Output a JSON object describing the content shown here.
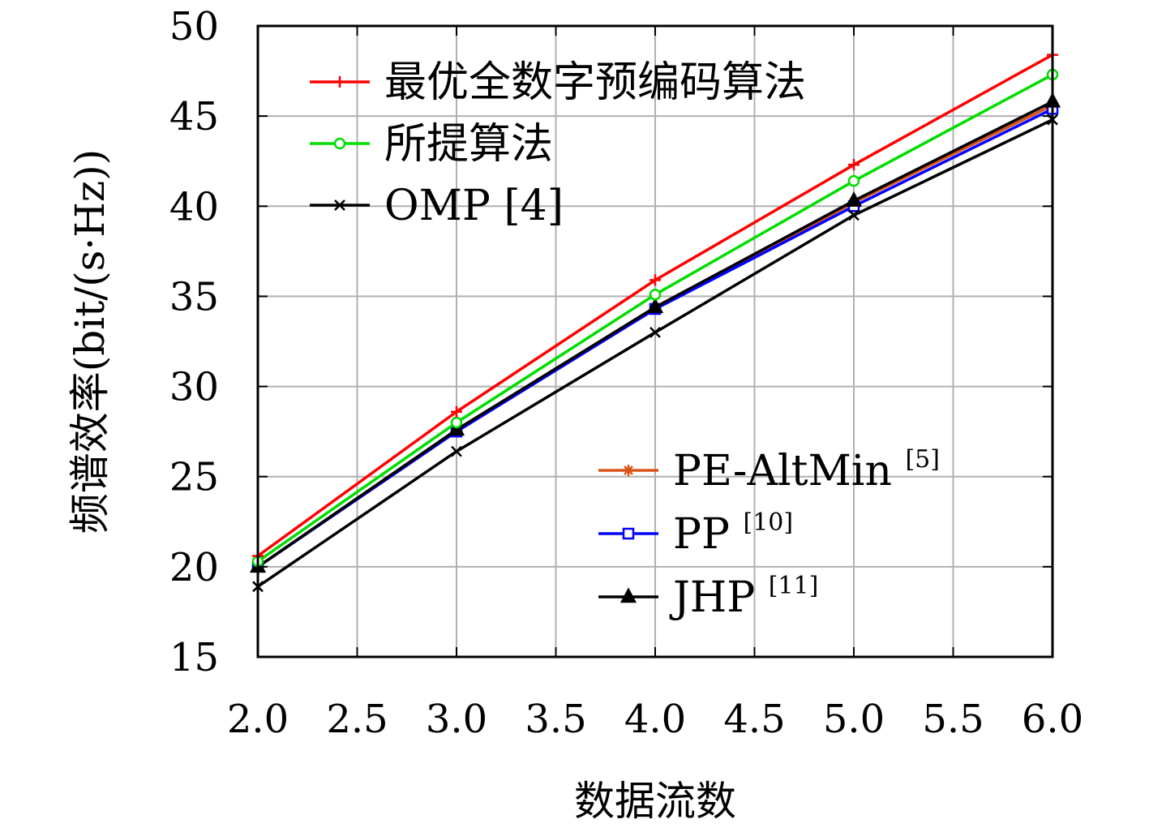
{
  "chart_data": {
    "type": "line",
    "title": "",
    "xlabel": "数据流数",
    "ylabel": "频谱效率(bit/(s·Hz))",
    "xlim": [
      2.0,
      6.0
    ],
    "ylim": [
      15,
      50
    ],
    "xticks": [
      "2.0",
      "2.5",
      "3.0",
      "3.5",
      "4.0",
      "4.5",
      "5.0",
      "5.5",
      "6.0"
    ],
    "yticks": [
      "15",
      "20",
      "25",
      "30",
      "35",
      "40",
      "45",
      "50"
    ],
    "grid": true,
    "legend_placement": [
      "top-left",
      "bottom-right"
    ],
    "x": [
      2.0,
      3.0,
      4.0,
      5.0,
      6.0
    ],
    "series": [
      {
        "name": "最优全数字预编码算法",
        "sup": "",
        "color": "#ff0000",
        "marker": "plus",
        "values": [
          20.6,
          28.6,
          35.9,
          42.3,
          48.4
        ],
        "legend_group": 0
      },
      {
        "name": "所提算法",
        "sup": "",
        "color": "#00dd00",
        "marker": "circle",
        "values": [
          20.3,
          28.0,
          35.1,
          41.4,
          47.3
        ],
        "legend_group": 0
      },
      {
        "name": "OMP [4]",
        "sup": "",
        "color": "#000000",
        "marker": "x",
        "values": [
          18.9,
          26.4,
          33.0,
          39.5,
          44.8
        ],
        "legend_group": 0
      },
      {
        "name": "PE-AltMin ",
        "sup": "[5]",
        "color": "#d95319",
        "marker": "asterisk",
        "values": [
          20.0,
          27.5,
          34.3,
          40.2,
          45.6
        ],
        "legend_group": 1
      },
      {
        "name": "PP ",
        "sup": "[10]",
        "color": "#0000ff",
        "marker": "square",
        "values": [
          20.0,
          27.5,
          34.3,
          40.0,
          45.4
        ],
        "legend_group": 1
      },
      {
        "name": "JHP ",
        "sup": "[11]",
        "color": "#000000",
        "marker": "triangle",
        "values": [
          20.0,
          27.6,
          34.4,
          40.3,
          45.8
        ],
        "legend_group": 1
      }
    ]
  }
}
